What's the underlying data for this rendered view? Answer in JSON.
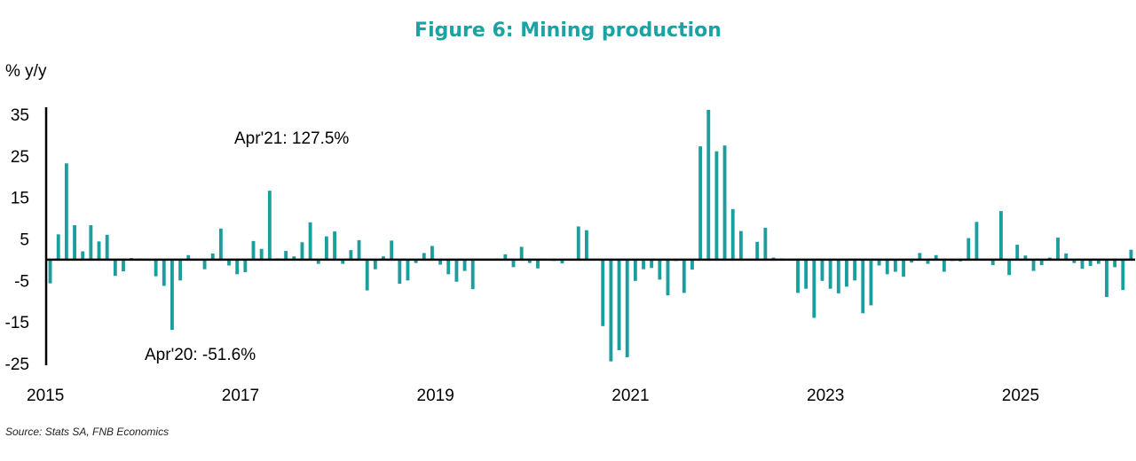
{
  "chart_data": {
    "type": "bar",
    "title": "Figure 6: Mining production",
    "ylabel": "% y/y",
    "source": "Source: Stats SA, FNB Economics",
    "ylim": [
      -25,
      35
    ],
    "yticks": [
      "35",
      "25",
      "15",
      "5",
      "-5",
      "-15",
      "-25"
    ],
    "ytick_values": [
      35,
      25,
      15,
      5,
      -5,
      -15,
      -25
    ],
    "xticks": [
      "2015",
      "2017",
      "2019",
      "2021",
      "2023",
      "2025"
    ],
    "xtick_months": [
      0,
      24,
      48,
      72,
      96,
      120
    ],
    "start": "2015-01",
    "grid": false,
    "legend": "none",
    "colors": {
      "bar": "#1a9e9e",
      "highlight": "#111111",
      "title": "#1aa3a3"
    },
    "values": [
      -5.7,
      6.1,
      23.2,
      8.3,
      2.0,
      8.3,
      4.4,
      6.0,
      -3.9,
      -2.8,
      0.4,
      0.3,
      0.1,
      -4.0,
      -6.3,
      -16.9,
      -5.0,
      1.1,
      0.1,
      -2.3,
      1.5,
      7.5,
      -1.4,
      -3.5,
      -3.0,
      4.5,
      2.6,
      16.6,
      0.3,
      2.1,
      0.8,
      4.2,
      9.0,
      -1.0,
      5.6,
      6.8,
      -1.0,
      2.3,
      4.7,
      -7.4,
      -2.3,
      0.8,
      4.6,
      -5.8,
      -5.0,
      -0.8,
      1.6,
      3.3,
      -1.2,
      -3.5,
      -5.3,
      -2.7,
      -7.1,
      0.1,
      0.2,
      0.3,
      1.3,
      -1.8,
      3.1,
      -0.8,
      -2.1,
      0.1,
      -0.3,
      -0.9,
      0.1,
      8.0,
      7.1,
      0.1,
      -16.0,
      -24.5,
      -21.8,
      -23.5,
      -5.1,
      -2.3,
      -2.0,
      -4.8,
      -8.6,
      -0.3,
      -8.0,
      -2.4,
      27.3,
      36.1,
      26.1,
      27.5,
      12.2,
      6.9,
      0.1,
      4.3,
      7.7,
      0.5,
      0.3,
      0.2,
      -8.0,
      -7.0,
      -14.0,
      -5.1,
      -7.0,
      -8.1,
      -6.5,
      -5.0,
      -12.9,
      -11.0,
      -1.4,
      -3.5,
      -2.9,
      -4.1,
      -0.7,
      1.6,
      -1.0,
      1.1,
      -2.9,
      -0.3,
      -0.4,
      5.2,
      9.1,
      -0.1,
      -1.3,
      11.7,
      -3.7,
      3.6,
      1.0,
      -2.7,
      -1.3,
      0.5,
      5.3,
      1.5,
      -0.8,
      -2.2,
      -1.5,
      -1.0,
      -9.0,
      -1.8,
      -7.3,
      2.4
    ],
    "annotations": [
      {
        "text": "Apr'21: 127.5%",
        "month": 75,
        "value": 29
      },
      {
        "text": "Apr'20: -51.6%",
        "month": 63,
        "value": -22
      }
    ]
  }
}
